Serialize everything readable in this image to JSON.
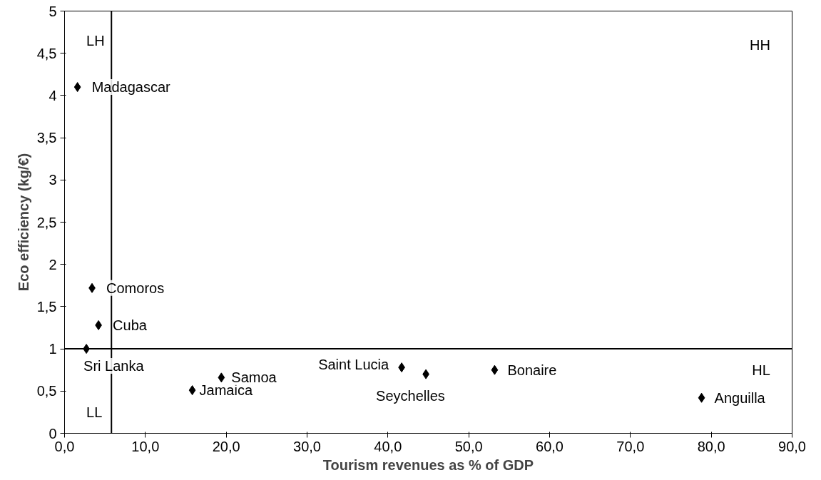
{
  "chart_data": {
    "type": "scatter",
    "xlabel": "Tourism revenues as % of GDP",
    "ylabel": "Eco efficiency (kg/€)",
    "xlim": [
      0,
      90
    ],
    "ylim": [
      0,
      5
    ],
    "xticks": [
      {
        "value": 0,
        "label": "0,0"
      },
      {
        "value": 10,
        "label": "10,0"
      },
      {
        "value": 20,
        "label": "20,0"
      },
      {
        "value": 30,
        "label": "30,0"
      },
      {
        "value": 40,
        "label": "40,0"
      },
      {
        "value": 50,
        "label": "50,0"
      },
      {
        "value": 60,
        "label": "60,0"
      },
      {
        "value": 70,
        "label": "70,0"
      },
      {
        "value": 80,
        "label": "80,0"
      },
      {
        "value": 90,
        "label": "90,0"
      }
    ],
    "yticks": [
      0,
      {
        "value": 0.5,
        "label": "0,5"
      },
      1,
      {
        "value": 1.5,
        "label": "1,5"
      },
      2,
      {
        "value": 2.5,
        "label": "2,5"
      },
      3,
      {
        "value": 3.5,
        "label": "3,5"
      },
      4,
      {
        "value": 4.5,
        "label": "4,5"
      },
      5
    ],
    "marker": "diamond",
    "grid": false,
    "series": [
      {
        "name": "Madagascar",
        "color": "#000000",
        "x": [
          1.6
        ],
        "values": [
          4.1
        ]
      },
      {
        "name": "Comoros",
        "color": "#000000",
        "x": [
          3.4
        ],
        "values": [
          1.72
        ]
      },
      {
        "name": "Cuba",
        "color": "#000000",
        "x": [
          4.2
        ],
        "values": [
          1.28
        ]
      },
      {
        "name": "Sri Lanka",
        "color": "#000000",
        "x": [
          2.7
        ],
        "values": [
          1.0
        ]
      },
      {
        "name": "Jamaica",
        "color": "#000000",
        "x": [
          15.8
        ],
        "values": [
          0.51
        ]
      },
      {
        "name": "Samoa",
        "color": "#000000",
        "x": [
          19.4
        ],
        "values": [
          0.66
        ]
      },
      {
        "name": "Saint Lucia",
        "color": "#000000",
        "x": [
          41.7
        ],
        "values": [
          0.78
        ]
      },
      {
        "name": "Seychelles",
        "color": "#000000",
        "x": [
          44.7
        ],
        "values": [
          0.7
        ]
      },
      {
        "name": "Bonaire",
        "color": "#000000",
        "x": [
          53.2
        ],
        "values": [
          0.75
        ]
      },
      {
        "name": "Anguilla",
        "color": "#000000",
        "x": [
          78.8
        ],
        "values": [
          0.42
        ]
      }
    ],
    "ref_lines": [
      {
        "axis": "x",
        "value": 5.8,
        "color": "#000000"
      },
      {
        "axis": "y",
        "value": 1.0,
        "color": "#000000"
      }
    ],
    "annotations": [
      "LH",
      "HH",
      "HL",
      "LL"
    ]
  }
}
